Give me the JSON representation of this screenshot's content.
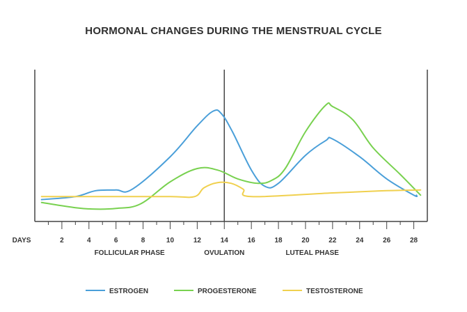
{
  "chart_data": {
    "type": "line",
    "title": "HORMONAL CHANGES DURING THE MENSTRUAL CYCLE",
    "xlabel": "DAYS",
    "ylabel": "",
    "xlim": [
      0,
      29
    ],
    "ylim": [
      0,
      100
    ],
    "x_ticks": [
      2,
      4,
      6,
      8,
      10,
      12,
      14,
      16,
      18,
      20,
      22,
      24,
      26,
      28
    ],
    "x_minor_ticks": [
      1,
      3,
      5,
      7,
      9,
      11,
      13,
      15,
      17,
      19,
      21,
      23,
      25,
      27
    ],
    "ovulation_day": 14,
    "phases": [
      {
        "label": "FOLLICULAR PHASE",
        "x": 7
      },
      {
        "label": "OVULATION",
        "x": 14
      },
      {
        "label": "LUTEAL PHASE",
        "x": 20.5
      }
    ],
    "series": [
      {
        "name": "ESTROGEN",
        "color": "#4a9fd9",
        "points": [
          [
            0.5,
            12
          ],
          [
            3,
            14
          ],
          [
            4.5,
            18
          ],
          [
            6,
            18.5
          ],
          [
            7.2,
            19
          ],
          [
            10,
            41
          ],
          [
            12,
            62
          ],
          [
            13.2,
            72
          ],
          [
            13.8,
            70
          ],
          [
            14.6,
            58
          ],
          [
            16,
            32
          ],
          [
            17,
            21
          ],
          [
            18,
            23
          ],
          [
            20,
            42
          ],
          [
            21.5,
            52
          ],
          [
            22,
            53
          ],
          [
            24,
            41
          ],
          [
            26,
            26
          ],
          [
            28,
            15
          ],
          [
            28.2,
            15
          ]
        ]
      },
      {
        "name": "PROGESTERONE",
        "color": "#78d14f",
        "points": [
          [
            0.5,
            10
          ],
          [
            3,
            6.5
          ],
          [
            4.5,
            5.5
          ],
          [
            6,
            6
          ],
          [
            7.8,
            9
          ],
          [
            10,
            24
          ],
          [
            12,
            33
          ],
          [
            13.5,
            32
          ],
          [
            15,
            26
          ],
          [
            16.5,
            23
          ],
          [
            17.5,
            25
          ],
          [
            18.5,
            33
          ],
          [
            20,
            58
          ],
          [
            21.5,
            76
          ],
          [
            22,
            75
          ],
          [
            23.5,
            66
          ],
          [
            25,
            47
          ],
          [
            27,
            29
          ],
          [
            28.5,
            15
          ]
        ]
      },
      {
        "name": "TESTOSTERONE",
        "color": "#f0d04e",
        "points": [
          [
            0.5,
            14
          ],
          [
            5,
            14
          ],
          [
            10,
            14
          ],
          [
            11.8,
            14
          ],
          [
            12.5,
            20
          ],
          [
            13.5,
            23.5
          ],
          [
            14.5,
            23
          ],
          [
            15.4,
            19
          ],
          [
            16,
            14
          ],
          [
            22,
            16.5
          ],
          [
            26,
            18
          ],
          [
            28.5,
            18.5
          ]
        ]
      }
    ],
    "legend_position": "bottom-center"
  }
}
